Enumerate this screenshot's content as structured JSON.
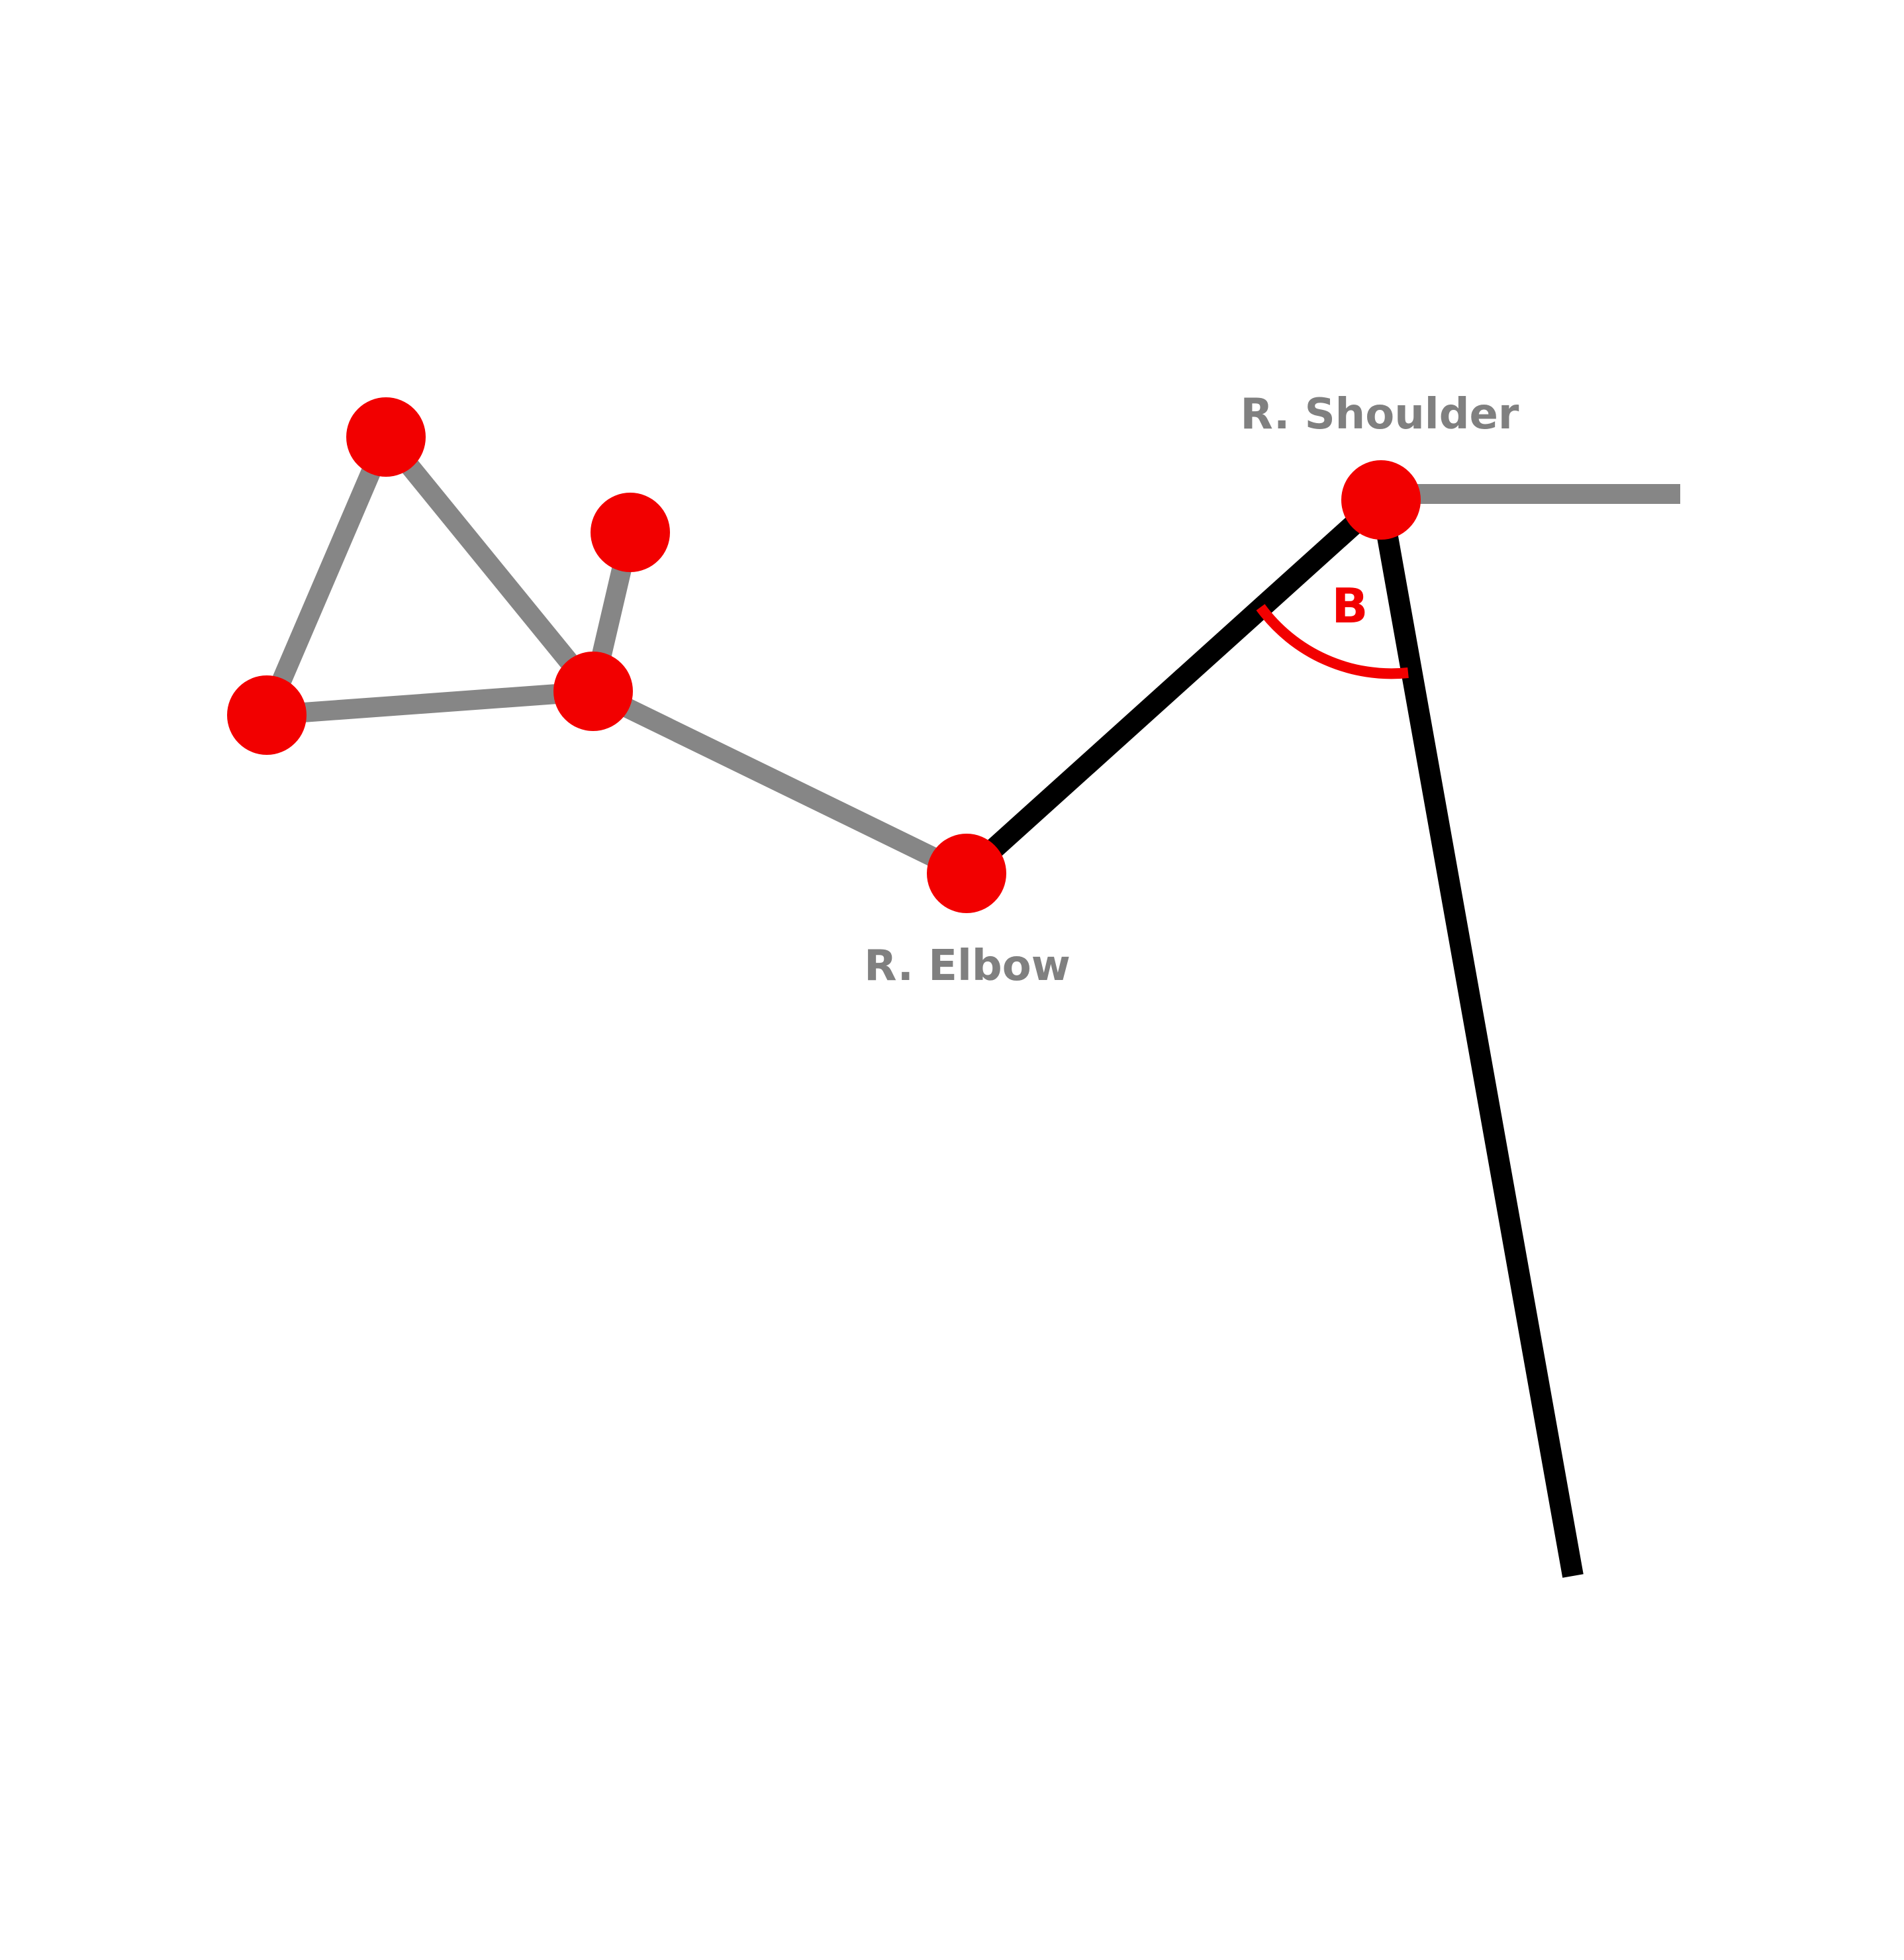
{
  "labels": {
    "shoulder": "R. Shoulder",
    "elbow": "R. Elbow",
    "angle": "B"
  },
  "colors": {
    "background": "#ffffff",
    "joint": "#f20000",
    "bone_inactive": "#868686",
    "bone_highlight": "#000000",
    "angle_arc": "#f20000",
    "label_text": "#808080"
  }
}
